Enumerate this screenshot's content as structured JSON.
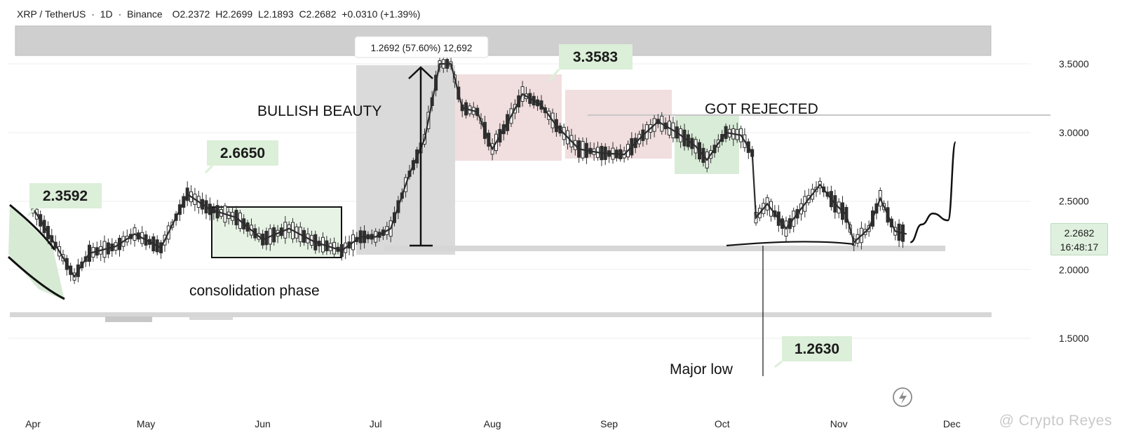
{
  "header": {
    "symbol": "XRP / TetherUS",
    "interval": "1D",
    "exchange": "Binance",
    "open": "O2.2372",
    "high": "H2.2699",
    "low": "L2.1893",
    "close": "C2.2682",
    "change": "+0.0310 (+1.39%)"
  },
  "price_tag": {
    "price": "2.2682",
    "countdown": "16:48:17"
  },
  "measure_label": "1.2692 (57.60%) 12,692",
  "watermark": "@ Crypto Reyes",
  "colors": {
    "up": "#2e2e2e",
    "down": "#2e2e2e",
    "callout_bg": "#dcefd9",
    "red_box": "#f1dede",
    "green_box": "#d9ecd8",
    "gray_box": "#d0d0d0"
  },
  "chart_data": {
    "type": "candlestick",
    "x_axis": {
      "ticks": [
        "Apr",
        "May",
        "Jun",
        "Jul",
        "Aug",
        "Sep",
        "Oct",
        "Nov",
        "Dec"
      ]
    },
    "y_axis": {
      "ticks": [
        "1.5000",
        "2.0000",
        "2.5000",
        "3.0000",
        "3.5000"
      ],
      "ylim": [
        1.0,
        3.9
      ]
    },
    "callouts": [
      "2.3592",
      "2.6650",
      "3.3583",
      "1.2630"
    ],
    "annotations": [
      "BULLISH BEAUTY",
      "GOT REJECTED",
      "consolidation phase",
      "Major low"
    ],
    "path_points": [
      [
        "Apr 1",
        2.45
      ],
      [
        "Apr 7",
        2.18
      ],
      [
        "Apr 12",
        1.95
      ],
      [
        "Apr 16",
        2.12
      ],
      [
        "Apr 23",
        2.17
      ],
      [
        "Apr 28",
        2.26
      ],
      [
        "May 5",
        2.16
      ],
      [
        "May 12",
        2.55
      ],
      [
        "May 18",
        2.44
      ],
      [
        "May 25",
        2.38
      ],
      [
        "Jun 1",
        2.22
      ],
      [
        "Jun 8",
        2.3
      ],
      [
        "Jun 15",
        2.2
      ],
      [
        "Jun 22",
        2.14
      ],
      [
        "Jun 27",
        2.24
      ],
      [
        "Jul 1",
        2.24
      ],
      [
        "Jul 5",
        2.3
      ],
      [
        "Jul 10",
        2.7
      ],
      [
        "Jul 14",
        2.95
      ],
      [
        "Jul 18",
        3.5
      ],
      [
        "Jul 21",
        3.5
      ],
      [
        "Jul 24",
        3.18
      ],
      [
        "Jul 28",
        3.15
      ],
      [
        "Aug 1",
        2.88
      ],
      [
        "Aug 6",
        3.12
      ],
      [
        "Aug 9",
        3.28
      ],
      [
        "Aug 14",
        3.2
      ],
      [
        "Aug 18",
        3.05
      ],
      [
        "Aug 24",
        2.88
      ],
      [
        "Aug 30",
        2.85
      ],
      [
        "Sep 5",
        2.84
      ],
      [
        "Sep 10",
        2.98
      ],
      [
        "Sep 14",
        3.08
      ],
      [
        "Sep 19",
        3.0
      ],
      [
        "Sep 24",
        2.9
      ],
      [
        "Sep 27",
        2.8
      ],
      [
        "Oct 2",
        3.0
      ],
      [
        "Oct 6",
        2.98
      ],
      [
        "Oct 9",
        2.85
      ],
      [
        "Oct 10",
        2.38
      ],
      [
        "Oct 13",
        2.48
      ],
      [
        "Oct 18",
        2.3
      ],
      [
        "Oct 23",
        2.48
      ],
      [
        "Oct 27",
        2.62
      ],
      [
        "Oct 31",
        2.48
      ],
      [
        "Nov 3",
        2.4
      ],
      [
        "Nov 5",
        2.2
      ],
      [
        "Nov 9",
        2.3
      ],
      [
        "Nov 12",
        2.52
      ],
      [
        "Nov 16",
        2.28
      ],
      [
        "Nov 19",
        2.26
      ]
    ],
    "projection": [
      [
        "Nov 20",
        2.2
      ],
      [
        "Nov 23",
        2.33
      ],
      [
        "Nov 26",
        2.41
      ],
      [
        "Nov 30",
        2.36
      ],
      [
        "Dec 2",
        2.93
      ]
    ],
    "levels": {
      "resistance": 3.14,
      "support": 2.18,
      "base_support": 1.72,
      "top_zone": [
        3.57,
        3.78
      ]
    }
  }
}
